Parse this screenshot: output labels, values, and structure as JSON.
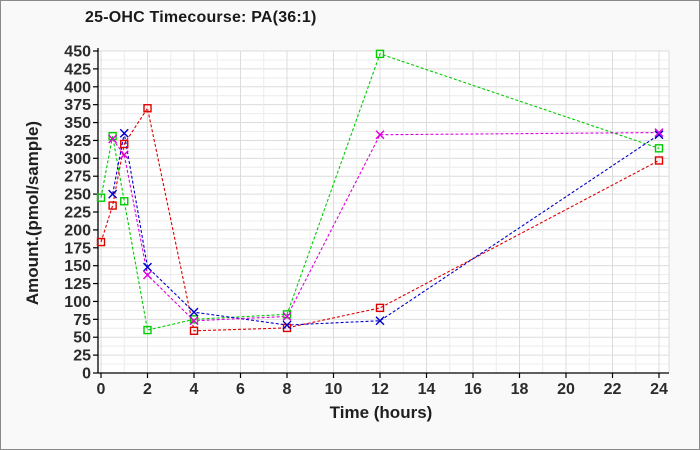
{
  "title": "25-OHC Timecourse: PA(36:1)",
  "chart_data": {
    "type": "line",
    "title": "25-OHC Timecourse: PA(36:1)",
    "xlabel": "Time (hours)",
    "ylabel": "Amount.(pmol/sample)",
    "xlim": [
      0,
      24.4
    ],
    "ylim": [
      0,
      450
    ],
    "x_ticks": [
      0,
      2,
      4,
      6,
      8,
      10,
      12,
      14,
      16,
      18,
      20,
      22,
      24
    ],
    "y_ticks": [
      0,
      25,
      50,
      75,
      100,
      125,
      150,
      175,
      200,
      225,
      250,
      275,
      300,
      325,
      350,
      375,
      400,
      425,
      450
    ],
    "x_minor_step": 1,
    "y_minor_step": 12.5,
    "grid": true,
    "legend": "none",
    "line_style": "dashed",
    "series": [
      {
        "name": "series-red",
        "color": "#e00000",
        "marker": "square",
        "x": [
          0,
          0.5,
          1,
          2,
          4,
          8,
          12,
          24
        ],
        "y": [
          183,
          234,
          320,
          370,
          59,
          63,
          91,
          297
        ]
      },
      {
        "name": "series-green",
        "color": "#00cc00",
        "marker": "square",
        "x": [
          0,
          0.5,
          1,
          2,
          4,
          8,
          12,
          24
        ],
        "y": [
          245,
          331,
          240,
          60,
          75,
          82,
          446,
          314
        ]
      },
      {
        "name": "series-blue",
        "color": "#0000cc",
        "marker": "x",
        "x": [
          0.5,
          1,
          2,
          4,
          8,
          12,
          24
        ],
        "y": [
          250,
          335,
          148,
          85,
          67,
          73,
          333
        ]
      },
      {
        "name": "series-magenta",
        "color": "#dd00dd",
        "marker": "x",
        "x": [
          0.5,
          1,
          2,
          4,
          8,
          12,
          24
        ],
        "y": [
          327,
          305,
          137,
          73,
          79,
          333,
          336
        ]
      }
    ]
  }
}
